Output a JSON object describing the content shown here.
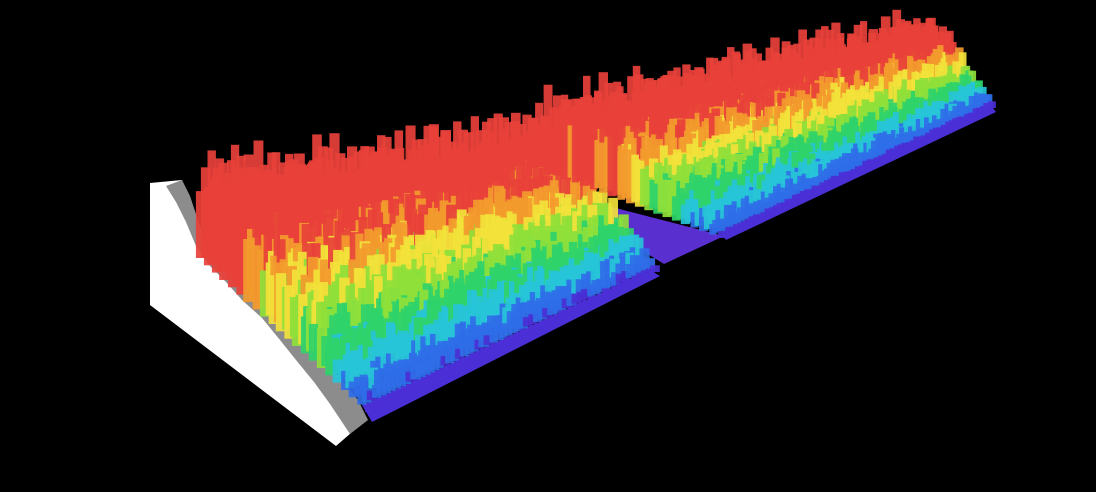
{
  "scene": {
    "background": "#000000",
    "colormap": [
      "#4b2fd6",
      "#2f6ee8",
      "#27c4d8",
      "#2fd36a",
      "#8fe03a",
      "#f2e23a",
      "#f39a2e",
      "#e8413a"
    ],
    "side_panel_colors": {
      "front_face": "#ffffff",
      "shadow_face": "#8c8c8c"
    },
    "gap_floor_color": "#5a2fd0"
  }
}
